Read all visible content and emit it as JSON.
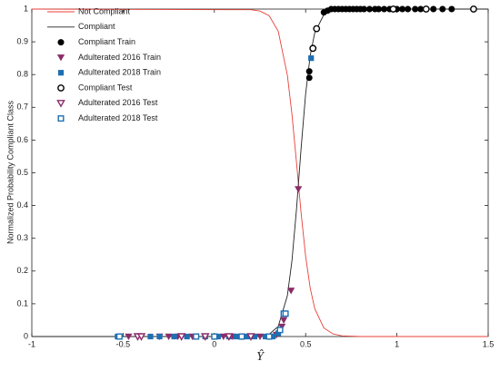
{
  "chart_data": {
    "type": "line",
    "x_label": "Ŷ",
    "y_label": "Normalized Probability Compliant Class",
    "xlim": [
      -1,
      1.5
    ],
    "ylim": [
      0,
      1
    ],
    "xticks": [
      -1,
      -0.5,
      0,
      0.5,
      1,
      1.5
    ],
    "yticks": [
      0,
      0.1,
      0.2,
      0.3,
      0.4,
      0.5,
      0.6,
      0.7,
      0.8,
      0.9,
      1
    ],
    "legend": "upper left",
    "series": [
      {
        "name": "Not Compliant",
        "type": "line",
        "color": "#e8403a",
        "x": [
          -1,
          0.2,
          0.25,
          0.3,
          0.35,
          0.4,
          0.425,
          0.45,
          0.475,
          0.5,
          0.525,
          0.55,
          0.6,
          0.65,
          0.7,
          0.8,
          1.5
        ],
        "values": [
          1,
          0.998,
          0.994,
          0.98,
          0.932,
          0.798,
          0.679,
          0.531,
          0.378,
          0.245,
          0.148,
          0.085,
          0.026,
          0.008,
          0.002,
          0,
          0
        ]
      },
      {
        "name": "Compliant",
        "type": "line",
        "color": "#222222",
        "x": [
          -1,
          0.2,
          0.25,
          0.3,
          0.35,
          0.4,
          0.425,
          0.45,
          0.475,
          0.5,
          0.525,
          0.55,
          0.6,
          0.65,
          0.7,
          0.8,
          1.5
        ],
        "values": [
          0,
          0,
          0.002,
          0.007,
          0.031,
          0.125,
          0.231,
          0.389,
          0.574,
          0.741,
          0.858,
          0.928,
          0.983,
          0.996,
          0.999,
          1,
          1
        ]
      },
      {
        "name": "Compliant Train",
        "type": "scatter",
        "marker": "circle-filled",
        "color": "#000000",
        "x": [
          0.52,
          0.52,
          0.6,
          0.62,
          0.64,
          0.66,
          0.68,
          0.7,
          0.72,
          0.74,
          0.76,
          0.78,
          0.8,
          0.82,
          0.85,
          0.88,
          0.9,
          0.93,
          0.96,
          1.0,
          1.03,
          1.06,
          1.1,
          1.13,
          1.2,
          1.25,
          1.3
        ],
        "values": [
          0.79,
          0.81,
          0.99,
          0.995,
          1,
          1,
          1,
          1,
          1,
          1,
          1,
          1,
          1,
          1,
          1,
          1,
          1,
          1,
          1,
          1,
          1,
          1,
          1,
          1,
          1,
          1,
          1
        ]
      },
      {
        "name": "Adulterated 2016 Train",
        "type": "scatter",
        "marker": "triangle-filled",
        "color": "#8b2c6a",
        "x": [
          -0.47,
          -0.3,
          -0.25,
          -0.2,
          -0.12,
          -0.05,
          0,
          0.05,
          0.1,
          0.15,
          0.2,
          0.25,
          0.3,
          0.34,
          0.37,
          0.38,
          0.42,
          0.46
        ],
        "values": [
          0,
          0,
          0,
          0,
          0,
          0,
          0,
          0,
          0,
          0,
          0,
          0,
          0,
          0.005,
          0.03,
          0.05,
          0.14,
          0.45
        ]
      },
      {
        "name": "Adulterated 2018 Train",
        "type": "scatter",
        "marker": "square-filled",
        "color": "#1f6fb2",
        "x": [
          -0.53,
          -0.52,
          -0.35,
          -0.3,
          -0.22,
          -0.15,
          -0.1,
          -0.05,
          0.02,
          0.08,
          0.12,
          0.18,
          0.22,
          0.28,
          0.32,
          0.35,
          0.53
        ],
        "values": [
          0,
          0,
          0,
          0,
          0,
          0,
          0,
          0,
          0,
          0,
          0,
          0,
          0,
          0,
          0,
          0.01,
          0.85
        ]
      },
      {
        "name": "Compliant Test",
        "type": "scatter",
        "marker": "circle-open",
        "color": "#000000",
        "x": [
          0.54,
          0.56,
          0.98,
          1.16,
          1.42
        ],
        "values": [
          0.88,
          0.94,
          1,
          1,
          1
        ]
      },
      {
        "name": "Adulterated 2016 Test",
        "type": "scatter",
        "marker": "triangle-open",
        "color": "#8b2c6a",
        "x": [
          -0.42,
          -0.4,
          -0.18,
          -0.05,
          0.08,
          0.2
        ],
        "values": [
          0,
          0,
          0,
          0,
          0,
          0
        ]
      },
      {
        "name": "Adulterated 2018 Test",
        "type": "scatter",
        "marker": "square-open",
        "color": "#1f6fb2",
        "x": [
          -0.52,
          -0.1,
          0,
          0.15,
          0.3,
          0.36,
          0.38,
          0.39
        ],
        "values": [
          0,
          0,
          0,
          0,
          0,
          0.02,
          0.07,
          0.07
        ]
      }
    ]
  }
}
